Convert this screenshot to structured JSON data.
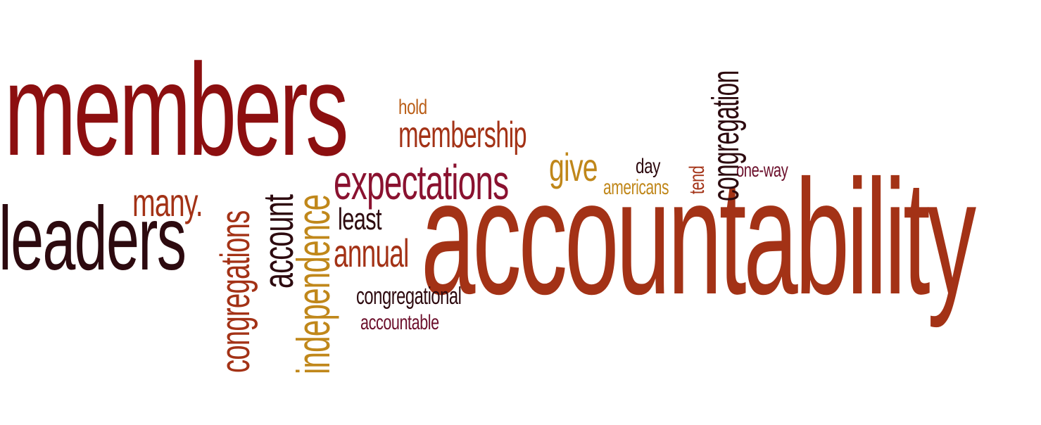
{
  "palette": {
    "dark_red": "#8c0f10",
    "deep_maroon": "#2d0a0f",
    "rust": "#a33216",
    "burnt_orange": "#b95d16",
    "mustard": "#c0871a",
    "plum": "#6b0f2b",
    "crimson": "#7a1424"
  },
  "words": {
    "members": "members",
    "hold": "hold",
    "membership": "membership",
    "give": "give",
    "day": "day",
    "americans": "americans",
    "tend": "tend",
    "congregation": "congregation",
    "one_way": "one-way",
    "many": "many.",
    "leaders": "leaders",
    "congregations": "congregations",
    "account": "account",
    "independence": "independence",
    "expectations": "expectations",
    "least": "least",
    "annual": "annual",
    "accountability": "accountability",
    "congregational": "congregational",
    "accountable": "accountable"
  }
}
